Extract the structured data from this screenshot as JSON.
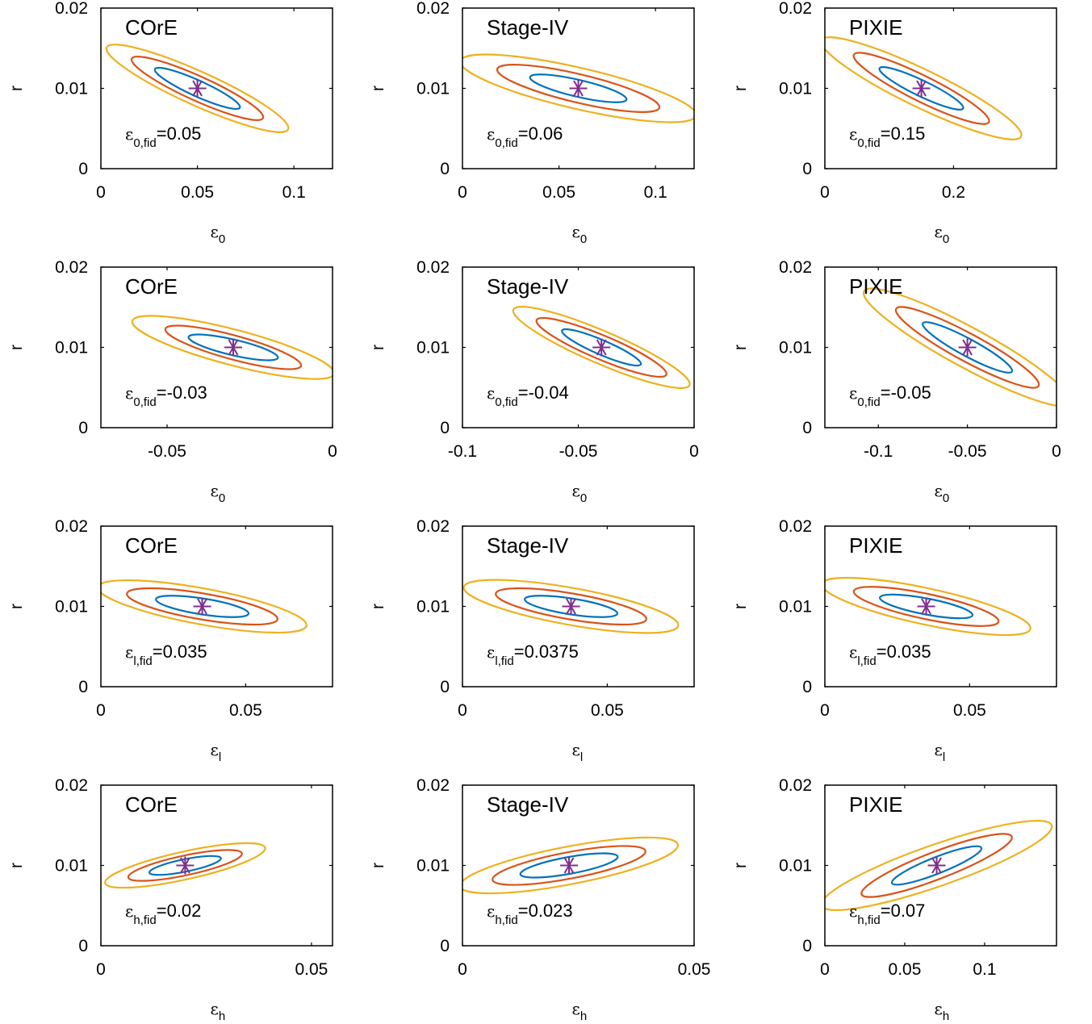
{
  "figure": {
    "ylabel": "r",
    "colors": {
      "contour_inner": "#0072BD",
      "contour_middle": "#D95319",
      "contour_outer": "#EDB120",
      "fiducial_marker": "#7E2F8E"
    }
  },
  "chart_data": [
    {
      "type": "line",
      "row": 0,
      "col": 0,
      "title": "COrE",
      "x_symbol": "ε",
      "x_sub": "0",
      "fid_sub": "0,fid",
      "fid_value": "=0.05",
      "x_fid": 0.05,
      "y_fid": 0.01,
      "xlim": [
        0,
        0.12
      ],
      "ylim": [
        0,
        0.02
      ],
      "xticks": [
        0,
        0.05,
        0.1
      ],
      "xtick_labels": [
        "0",
        "0.05",
        "0.1"
      ],
      "yticks": [
        0,
        0.01,
        0.02
      ],
      "ytick_labels": [
        "0",
        "0.01",
        "0.02"
      ],
      "contours": [
        {
          "x_halfwidth": 0.022,
          "y_halfwidth": 0.0024
        },
        {
          "x_halfwidth": 0.034,
          "y_halfwidth": 0.0037
        },
        {
          "x_halfwidth": 0.047,
          "y_halfwidth": 0.0051
        }
      ]
    },
    {
      "type": "line",
      "row": 0,
      "col": 1,
      "title": "Stage-IV",
      "x_symbol": "ε",
      "x_sub": "0",
      "fid_sub": "0,fid",
      "fid_value": "=0.06",
      "x_fid": 0.06,
      "y_fid": 0.01,
      "xlim": [
        0,
        0.12
      ],
      "ylim": [
        0,
        0.02
      ],
      "xticks": [
        0,
        0.05,
        0.1
      ],
      "xtick_labels": [
        "0",
        "0.05",
        "0.1"
      ],
      "yticks": [
        0,
        0.01,
        0.02
      ],
      "ytick_labels": [
        "0",
        "0.01",
        "0.02"
      ],
      "contours": [
        {
          "x_halfwidth": 0.025,
          "y_halfwidth": 0.0014
        },
        {
          "x_halfwidth": 0.042,
          "y_halfwidth": 0.0024
        },
        {
          "x_halfwidth": 0.061,
          "y_halfwidth": 0.0034
        }
      ]
    },
    {
      "type": "line",
      "row": 0,
      "col": 2,
      "title": "PIXIE",
      "x_symbol": "ε",
      "x_sub": "0",
      "fid_sub": "0,fid",
      "fid_value": "=0.15",
      "x_fid": 0.15,
      "y_fid": 0.01,
      "xlim": [
        0,
        0.36
      ],
      "ylim": [
        0,
        0.02
      ],
      "xticks": [
        0,
        0.2
      ],
      "xtick_labels": [
        "0",
        "0.2"
      ],
      "yticks": [
        0,
        0.01,
        0.02
      ],
      "ytick_labels": [
        "0",
        "0.01",
        "0.02"
      ],
      "contours": [
        {
          "x_halfwidth": 0.065,
          "y_halfwidth": 0.0025
        },
        {
          "x_halfwidth": 0.105,
          "y_halfwidth": 0.0042
        },
        {
          "x_halfwidth": 0.155,
          "y_halfwidth": 0.006
        }
      ]
    },
    {
      "type": "line",
      "row": 1,
      "col": 0,
      "title": "COrE",
      "x_symbol": "ε",
      "x_sub": "0",
      "fid_sub": "0,fid",
      "fid_value": "=-0.03",
      "x_fid": -0.03,
      "y_fid": 0.01,
      "xlim": [
        -0.07,
        0
      ],
      "ylim": [
        0,
        0.02
      ],
      "xticks": [
        -0.05,
        0
      ],
      "xtick_labels": [
        "-0.05",
        "0"
      ],
      "yticks": [
        0,
        0.01,
        0.02
      ],
      "ytick_labels": [
        "0",
        "0.01",
        "0.02"
      ],
      "contours": [
        {
          "x_halfwidth": 0.0135,
          "y_halfwidth": 0.0013
        },
        {
          "x_halfwidth": 0.0205,
          "y_halfwidth": 0.0023
        },
        {
          "x_halfwidth": 0.0305,
          "y_halfwidth": 0.0033
        }
      ]
    },
    {
      "type": "line",
      "row": 1,
      "col": 1,
      "title": "Stage-IV",
      "x_symbol": "ε",
      "x_sub": "0",
      "fid_sub": "0,fid",
      "fid_value": "=-0.04",
      "x_fid": -0.04,
      "y_fid": 0.01,
      "xlim": [
        -0.1,
        0
      ],
      "ylim": [
        0,
        0.02
      ],
      "xticks": [
        -0.1,
        -0.05,
        0
      ],
      "xtick_labels": [
        "-0.1",
        "-0.05",
        "0"
      ],
      "yticks": [
        0,
        0.01,
        0.02
      ],
      "ytick_labels": [
        "0",
        "0.01",
        "0.02"
      ],
      "contours": [
        {
          "x_halfwidth": 0.017,
          "y_halfwidth": 0.0021
        },
        {
          "x_halfwidth": 0.028,
          "y_halfwidth": 0.0034
        },
        {
          "x_halfwidth": 0.038,
          "y_halfwidth": 0.0047
        }
      ]
    },
    {
      "type": "line",
      "row": 1,
      "col": 2,
      "title": "PIXIE",
      "x_symbol": "ε",
      "x_sub": "0",
      "fid_sub": "0,fid",
      "fid_value": "=-0.05",
      "x_fid": -0.05,
      "y_fid": 0.01,
      "xlim": [
        -0.13,
        0
      ],
      "ylim": [
        0,
        0.02
      ],
      "xticks": [
        -0.1,
        -0.05,
        0
      ],
      "xtick_labels": [
        "-0.1",
        "-0.05",
        "0"
      ],
      "yticks": [
        0,
        0.01,
        0.02
      ],
      "ytick_labels": [
        "0",
        "0.01",
        "0.02"
      ],
      "contours": [
        {
          "x_halfwidth": 0.025,
          "y_halfwidth": 0.003
        },
        {
          "x_halfwidth": 0.04,
          "y_halfwidth": 0.0048
        },
        {
          "x_halfwidth": 0.058,
          "y_halfwidth": 0.007
        }
      ]
    },
    {
      "type": "line",
      "row": 2,
      "col": 0,
      "title": "COrE",
      "x_symbol": "ε",
      "x_sub": "l",
      "fid_sub": "l,fid",
      "fid_value": "=0.035",
      "x_fid": 0.035,
      "y_fid": 0.01,
      "xlim": [
        0,
        0.08
      ],
      "ylim": [
        0,
        0.02
      ],
      "xticks": [
        0,
        0.05
      ],
      "xtick_labels": [
        "0",
        "0.05"
      ],
      "yticks": [
        0,
        0.01,
        0.02
      ],
      "ytick_labels": [
        "0",
        "0.01",
        "0.02"
      ],
      "contours": [
        {
          "x_halfwidth": 0.016,
          "y_halfwidth": 0.0009
        },
        {
          "x_halfwidth": 0.026,
          "y_halfwidth": 0.0016
        },
        {
          "x_halfwidth": 0.036,
          "y_halfwidth": 0.0024
        }
      ]
    },
    {
      "type": "line",
      "row": 2,
      "col": 1,
      "title": "Stage-IV",
      "x_symbol": "ε",
      "x_sub": "l",
      "fid_sub": "l,fid",
      "fid_value": "=0.0375",
      "x_fid": 0.0375,
      "y_fid": 0.01,
      "xlim": [
        0,
        0.08
      ],
      "ylim": [
        0,
        0.02
      ],
      "xticks": [
        0,
        0.05
      ],
      "xtick_labels": [
        "0",
        "0.05"
      ],
      "yticks": [
        0,
        0.01,
        0.02
      ],
      "ytick_labels": [
        "0",
        "0.01",
        "0.02"
      ],
      "contours": [
        {
          "x_halfwidth": 0.016,
          "y_halfwidth": 0.0009
        },
        {
          "x_halfwidth": 0.026,
          "y_halfwidth": 0.0016
        },
        {
          "x_halfwidth": 0.037,
          "y_halfwidth": 0.0024
        }
      ]
    },
    {
      "type": "line",
      "row": 2,
      "col": 2,
      "title": "PIXIE",
      "x_symbol": "ε",
      "x_sub": "l",
      "fid_sub": "l,fid",
      "fid_value": "=0.035",
      "x_fid": 0.035,
      "y_fid": 0.01,
      "xlim": [
        0,
        0.08
      ],
      "ylim": [
        0,
        0.02
      ],
      "xticks": [
        0,
        0.05
      ],
      "xtick_labels": [
        "0",
        "0.05"
      ],
      "yticks": [
        0,
        0.01,
        0.02
      ],
      "ytick_labels": [
        "0",
        "0.01",
        "0.02"
      ],
      "contours": [
        {
          "x_halfwidth": 0.016,
          "y_halfwidth": 0.0011
        },
        {
          "x_halfwidth": 0.025,
          "y_halfwidth": 0.0019
        },
        {
          "x_halfwidth": 0.036,
          "y_halfwidth": 0.0028
        }
      ]
    },
    {
      "type": "line",
      "row": 3,
      "col": 0,
      "title": "COrE",
      "x_symbol": "ε",
      "x_sub": "h",
      "fid_sub": "h,fid",
      "fid_value": "=0.02",
      "x_fid": 0.02,
      "y_fid": 0.01,
      "xlim": [
        0,
        0.055
      ],
      "ylim": [
        0,
        0.02
      ],
      "xticks": [
        0,
        0.05
      ],
      "xtick_labels": [
        "0",
        "0.05"
      ],
      "yticks": [
        0,
        0.01,
        0.02
      ],
      "ytick_labels": [
        "0",
        "0.01",
        "0.02"
      ],
      "contours": [
        {
          "x_halfwidth": 0.0085,
          "y_halfwidth": 0.0009
        },
        {
          "x_halfwidth": 0.0135,
          "y_halfwidth": 0.0015
        },
        {
          "x_halfwidth": 0.019,
          "y_halfwidth": 0.0022
        }
      ]
    },
    {
      "type": "line",
      "row": 3,
      "col": 1,
      "title": "Stage-IV",
      "x_symbol": "ε",
      "x_sub": "h",
      "fid_sub": "h,fid",
      "fid_value": "=0.023",
      "x_fid": 0.023,
      "y_fid": 0.01,
      "xlim": [
        0,
        0.05
      ],
      "ylim": [
        0,
        0.02
      ],
      "xticks": [
        0,
        0.05
      ],
      "xtick_labels": [
        "0",
        "0.05"
      ],
      "yticks": [
        0,
        0.01,
        0.02
      ],
      "ytick_labels": [
        "0",
        "0.01",
        "0.02"
      ],
      "contours": [
        {
          "x_halfwidth": 0.0105,
          "y_halfwidth": 0.0011
        },
        {
          "x_halfwidth": 0.0165,
          "y_halfwidth": 0.0018
        },
        {
          "x_halfwidth": 0.0235,
          "y_halfwidth": 0.0026
        }
      ]
    },
    {
      "type": "line",
      "row": 3,
      "col": 2,
      "title": "PIXIE",
      "x_symbol": "ε",
      "x_sub": "h",
      "fid_sub": "h,fid",
      "fid_value": "=0.07",
      "x_fid": 0.07,
      "y_fid": 0.01,
      "xlim": [
        0,
        0.145
      ],
      "ylim": [
        0,
        0.02
      ],
      "xticks": [
        0,
        0.05,
        0.1
      ],
      "xtick_labels": [
        "0",
        "0.05",
        "0.1"
      ],
      "yticks": [
        0,
        0.01,
        0.02
      ],
      "ytick_labels": [
        "0",
        "0.01",
        "0.02"
      ],
      "contours": [
        {
          "x_halfwidth": 0.028,
          "y_halfwidth": 0.0022
        },
        {
          "x_halfwidth": 0.047,
          "y_halfwidth": 0.0036
        },
        {
          "x_halfwidth": 0.072,
          "y_halfwidth": 0.005
        }
      ]
    }
  ]
}
